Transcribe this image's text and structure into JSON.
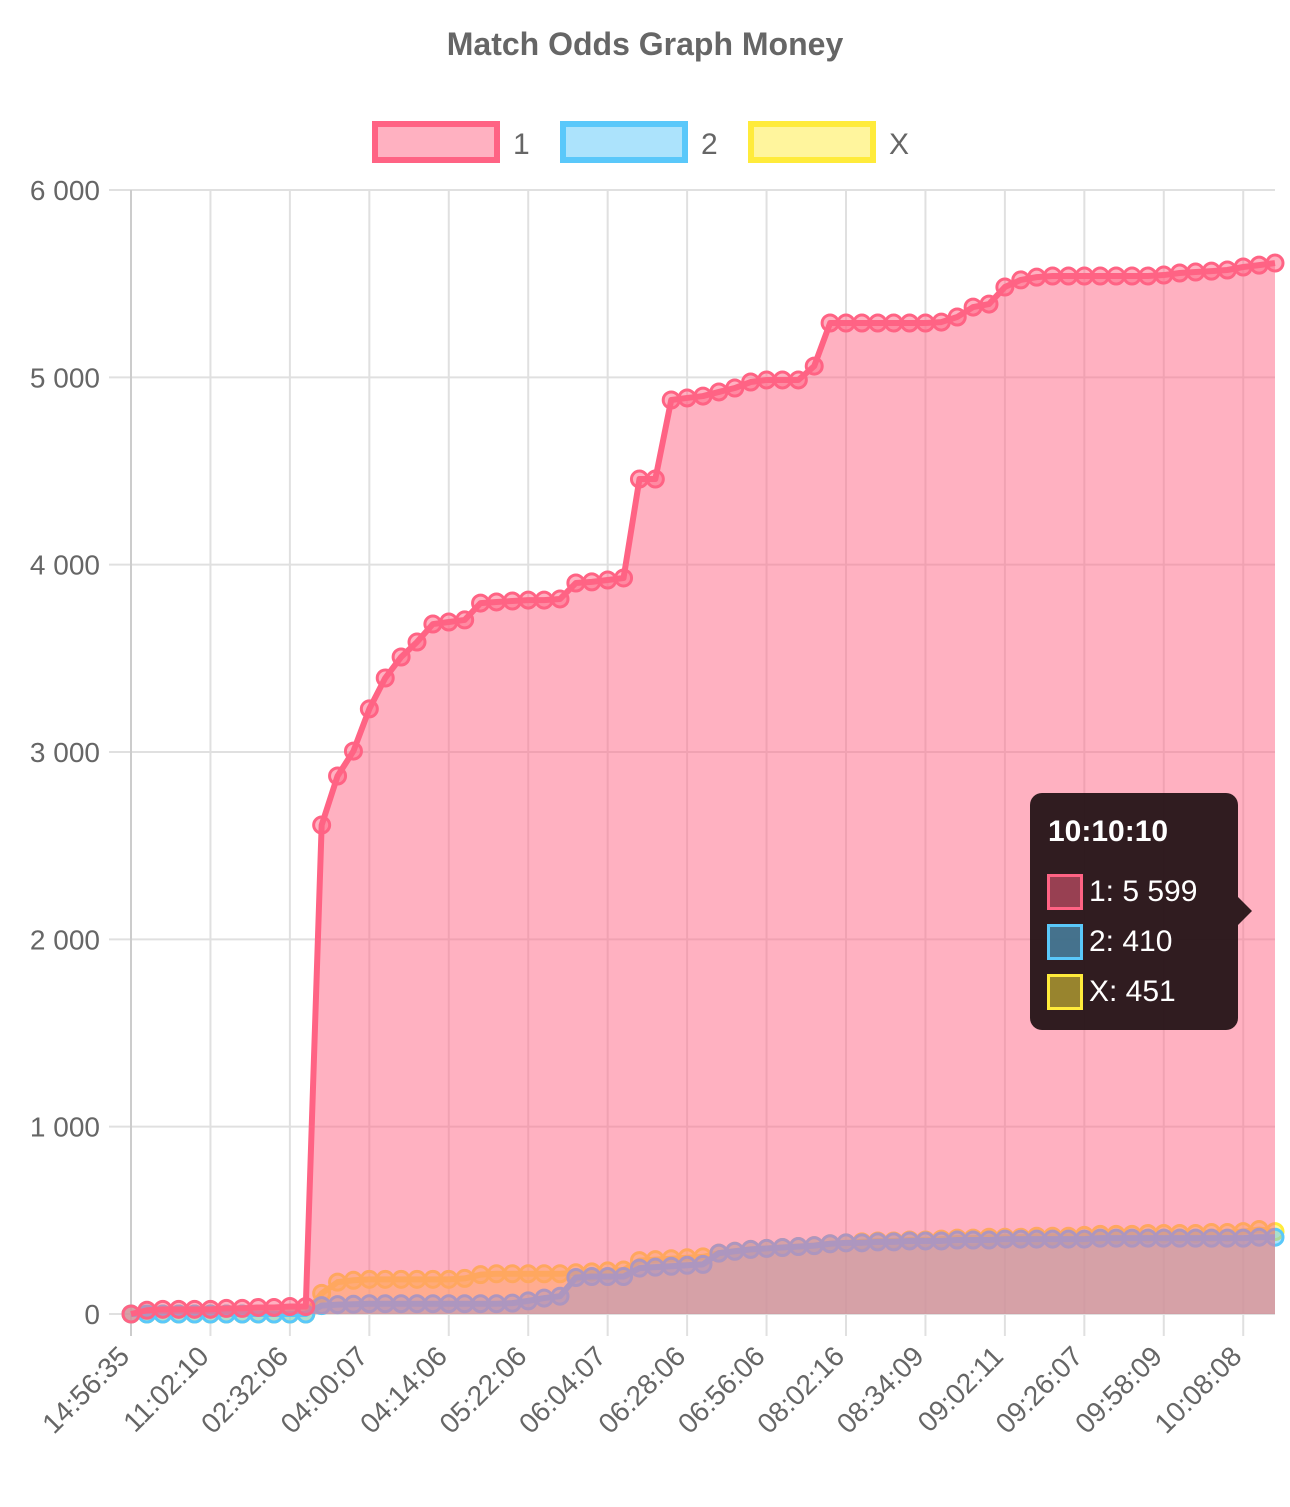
{
  "chart_data": {
    "type": "area",
    "title": "Match Odds Graph Money",
    "categories": [
      "14:56:35",
      null,
      null,
      null,
      null,
      "11:02:10",
      null,
      null,
      null,
      null,
      "02:32:06",
      null,
      null,
      null,
      null,
      "04:00:07",
      null,
      null,
      null,
      null,
      "04:14:06",
      null,
      null,
      null,
      null,
      "05:22:06",
      null,
      null,
      null,
      null,
      "06:04:07",
      null,
      null,
      null,
      null,
      "06:28:06",
      null,
      null,
      null,
      null,
      "06:56:06",
      null,
      null,
      null,
      null,
      "08:02:16",
      null,
      null,
      null,
      null,
      "08:34:09",
      null,
      null,
      null,
      null,
      "09:02:11",
      null,
      null,
      null,
      null,
      "09:26:07",
      null,
      null,
      null,
      null,
      "09:58:09",
      null,
      null,
      null,
      null,
      "10:08:08",
      null,
      null
    ],
    "series": [
      {
        "name": "1",
        "color": "#ff6384",
        "values": [
          0,
          20,
          25,
          25,
          25,
          25,
          30,
          30,
          35,
          35,
          40,
          40,
          2610,
          2872,
          3005,
          3230,
          3395,
          3507,
          3587,
          3683,
          3694,
          3705,
          3795,
          3801,
          3806,
          3811,
          3811,
          3817,
          3902,
          3908,
          3918,
          3929,
          4457,
          4457,
          4879,
          4890,
          4900,
          4922,
          4943,
          4975,
          4986,
          4986,
          4986,
          5060,
          5290,
          5290,
          5290,
          5290,
          5290,
          5290,
          5290,
          5295,
          5322,
          5375,
          5391,
          5482,
          5520,
          5535,
          5541,
          5541,
          5541,
          5541,
          5541,
          5541,
          5541,
          5546,
          5557,
          5562,
          5567,
          5573,
          5589,
          5599,
          5610
        ]
      },
      {
        "name": "2",
        "color": "#5ac8fa",
        "values": [
          0,
          0,
          0,
          0,
          0,
          0,
          0,
          0,
          0,
          0,
          0,
          0,
          45,
          50,
          52,
          55,
          55,
          55,
          55,
          55,
          55,
          55,
          55,
          55,
          58,
          70,
          85,
          95,
          195,
          200,
          200,
          200,
          245,
          250,
          255,
          260,
          265,
          325,
          335,
          345,
          350,
          355,
          360,
          365,
          375,
          380,
          380,
          385,
          385,
          390,
          390,
          390,
          395,
          395,
          395,
          400,
          400,
          400,
          400,
          400,
          400,
          405,
          405,
          405,
          405,
          405,
          405,
          405,
          405,
          405,
          405,
          410,
          410
        ]
      },
      {
        "name": "X",
        "color": "#ffeb3b",
        "values": [
          0,
          0,
          0,
          0,
          0,
          0,
          0,
          0,
          0,
          0,
          0,
          0,
          110,
          170,
          180,
          185,
          185,
          185,
          185,
          185,
          185,
          190,
          210,
          215,
          215,
          215,
          215,
          215,
          220,
          225,
          230,
          235,
          285,
          290,
          295,
          300,
          305,
          325,
          335,
          345,
          350,
          355,
          360,
          365,
          375,
          380,
          385,
          390,
          390,
          395,
          395,
          400,
          405,
          405,
          410,
          410,
          410,
          415,
          415,
          415,
          420,
          425,
          425,
          425,
          430,
          430,
          430,
          430,
          435,
          435,
          440,
          451,
          440
        ]
      }
    ],
    "ylim": [
      0,
      6000
    ],
    "yticks": [
      0,
      {
        "value": 1000,
        "label": "1 000"
      },
      {
        "value": 2000,
        "label": "2 000"
      },
      {
        "value": 3000,
        "label": "3 000"
      },
      {
        "value": 4000,
        "label": "4 000"
      },
      {
        "value": 5000,
        "label": "5 000"
      },
      {
        "value": 6000,
        "label": "6 000"
      }
    ],
    "grid": true,
    "legend": "top",
    "tooltip": {
      "title": "10:10:10",
      "items": [
        "1: 5 599",
        "2: 410",
        "X: 451"
      ]
    }
  }
}
